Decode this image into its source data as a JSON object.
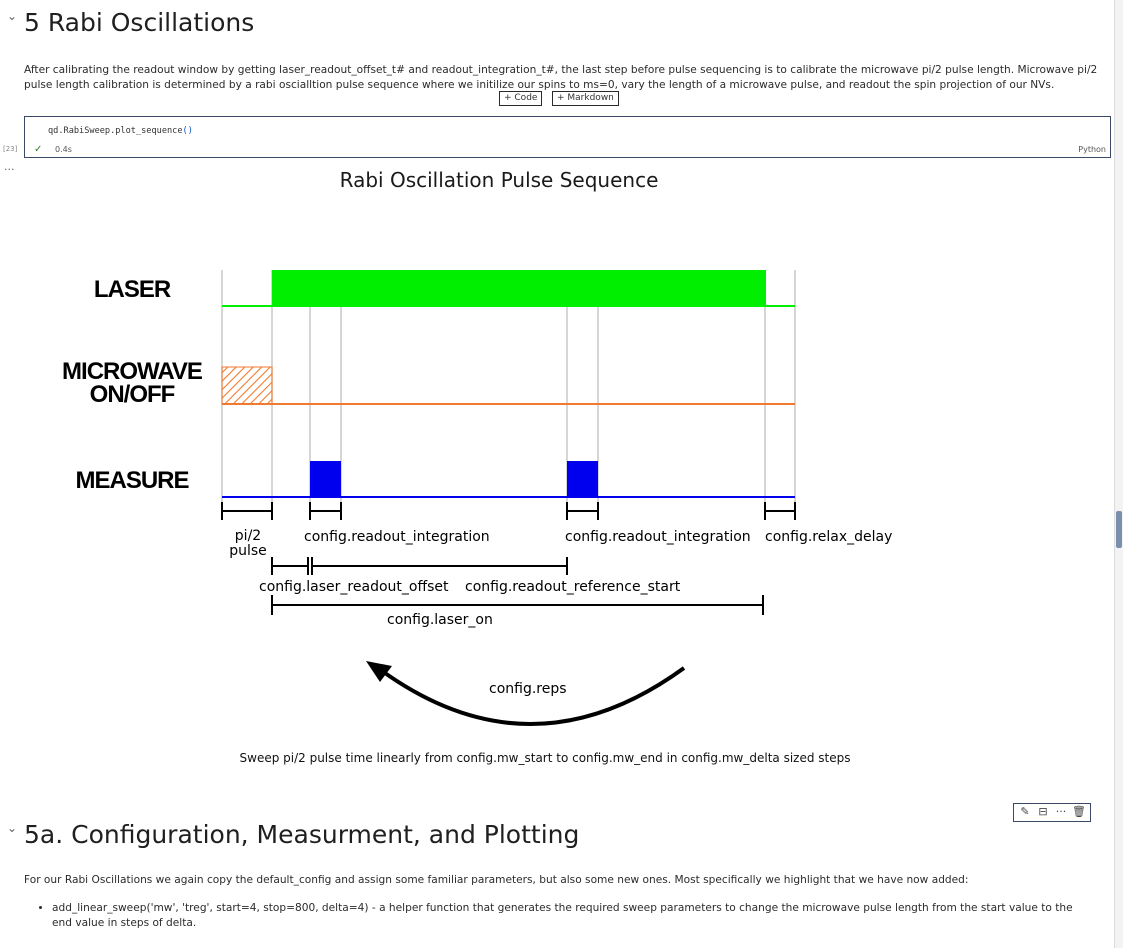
{
  "section5": {
    "title": "5 Rabi Oscillations",
    "paragraph": "After calibrating the readout window by getting laser_readout_offset_t# and readout_integration_t#, the last step before pulse sequencing is to calibrate the microwave pi/2 pulse length. Microwave pi/2 pulse length calibration is determined by a rabi oscialltion pulse sequence where we initilize our spins to ms=0, vary the length of a microwave pulse, and readout the spin projection of our NVs."
  },
  "insert_buttons": {
    "code": "+ Code",
    "markdown": "+ Markdown"
  },
  "code_cell": {
    "code_prefix": "qd.RabiSweep.plot_sequence",
    "code_parens": "()",
    "exec_count": "[23]",
    "check": "✓",
    "duration": "0.4s",
    "language": "Python",
    "output_ellipsis": "..."
  },
  "diagram": {
    "title": "Rabi Oscillation Pulse Sequence",
    "rows": {
      "laser": "LASER",
      "microwave_1": "MICROWAVE",
      "microwave_2": "ON/OFF",
      "measure": "MEASURE"
    },
    "labels": {
      "pi2_1": "pi/2",
      "pi2_2": "pulse",
      "readout_integration_1": "config.readout_integration",
      "readout_integration_2": "config.readout_integration",
      "relax_delay": "config.relax_delay",
      "laser_readout_offset": "config.laser_readout_offset",
      "readout_reference_start": "config.readout_reference_start",
      "laser_on": "config.laser_on",
      "reps": "config.reps"
    },
    "caption": "Sweep pi/2 pulse time linearly from config.mw_start to config.mw_end in config.mw_delta sized steps",
    "colors": {
      "laser": "#00ee00",
      "microwave": "#f07a30",
      "measure": "#0000ee",
      "grid": "#c8c8c8"
    }
  },
  "toolbar": {
    "edit_icon": "pencil-icon",
    "split_icon": "split-icon",
    "more": "···",
    "delete_icon": "trash-icon"
  },
  "section5a": {
    "title": "5a. Configuration, Measurment, and Plotting",
    "paragraph": "For our Rabi Oscillations we again copy the default_config and assign some familiar parameters, but also some new ones. Most specifically we highlight that we have now added:",
    "bullets": [
      "add_linear_sweep('mw', 'treg', start=4, stop=800, delta=4) - a helper function that generates the required sweep parameters to change the microwave pulse length from the start value to the end value in steps of delta."
    ]
  }
}
